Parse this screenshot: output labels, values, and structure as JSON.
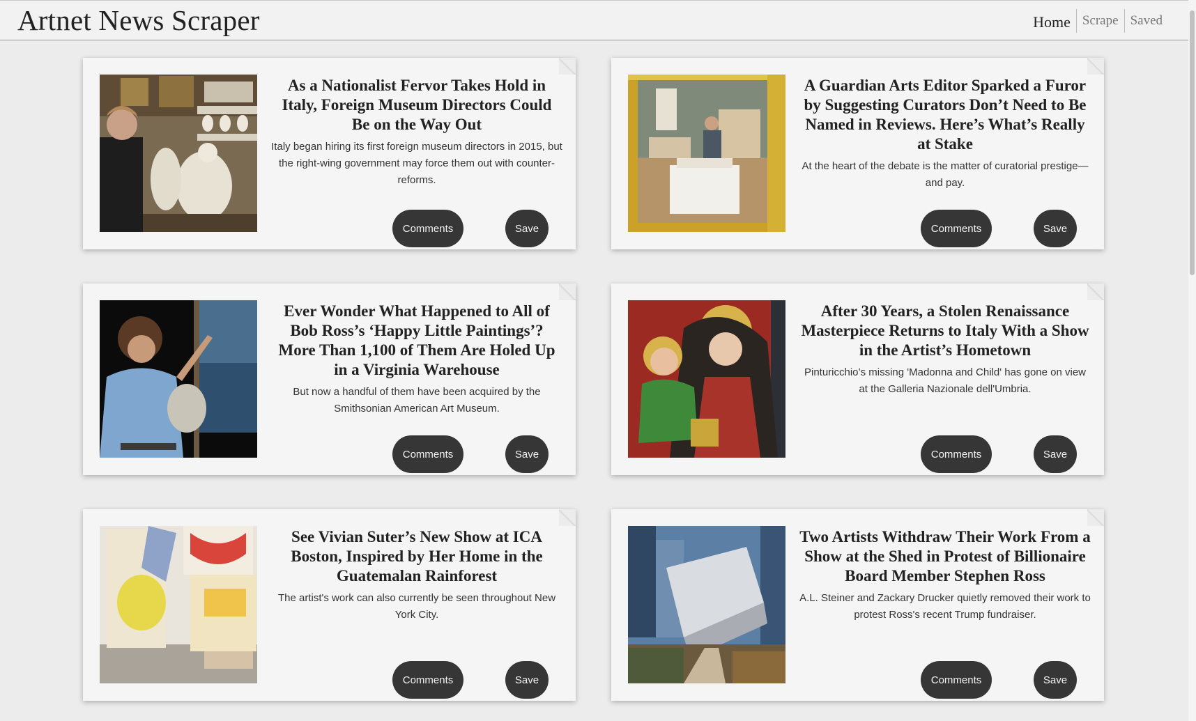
{
  "app": {
    "brand": "Artnet News Scraper"
  },
  "nav": {
    "home": "Home",
    "scrape": "Scrape",
    "saved": "Saved"
  },
  "buttons": {
    "comments": "Comments",
    "save": "Save"
  },
  "articles": [
    {
      "title": "As a Nationalist Fervor Takes Hold in Italy, Foreign Museum Directors Could Be on the Way Out",
      "summary": "Italy began hiring its first foreign museum directors in 2015, but the right-wing government may force them out with counter-reforms."
    },
    {
      "title": "A Guardian Arts Editor Sparked a Furor by Suggesting Curators Don’t Need to Be Named in Reviews. Here’s What’s Really at Stake",
      "summary": "At the heart of the debate is the matter of curatorial prestige—and pay."
    },
    {
      "title": "Ever Wonder What Happened to All of Bob Ross’s ‘Happy Little Paintings’? More Than 1,100 of Them Are Holed Up in a Virginia Warehouse",
      "summary": "But now a handful of them have been acquired by the Smithsonian American Art Museum."
    },
    {
      "title": "After 30 Years, a Stolen Renaissance Masterpiece Returns to Italy With a Show in the Artist’s Hometown",
      "summary": "Pinturicchio’s missing 'Madonna and Child' has gone on view at the Galleria Nazionale dell'Umbria."
    },
    {
      "title": "See Vivian Suter’s New Show at ICA Boston, Inspired by Her Home in the Guatemalan Rainforest",
      "summary": "The artist's work can also currently be seen throughout New York City."
    },
    {
      "title": "Two Artists Withdraw Their Work From a Show at the Shed in Protest of Billionaire Board Member Stephen Ross",
      "summary": "A.L. Steiner and Zackary Drucker quietly removed their work to protest Ross's recent Trump fundraiser."
    }
  ]
}
